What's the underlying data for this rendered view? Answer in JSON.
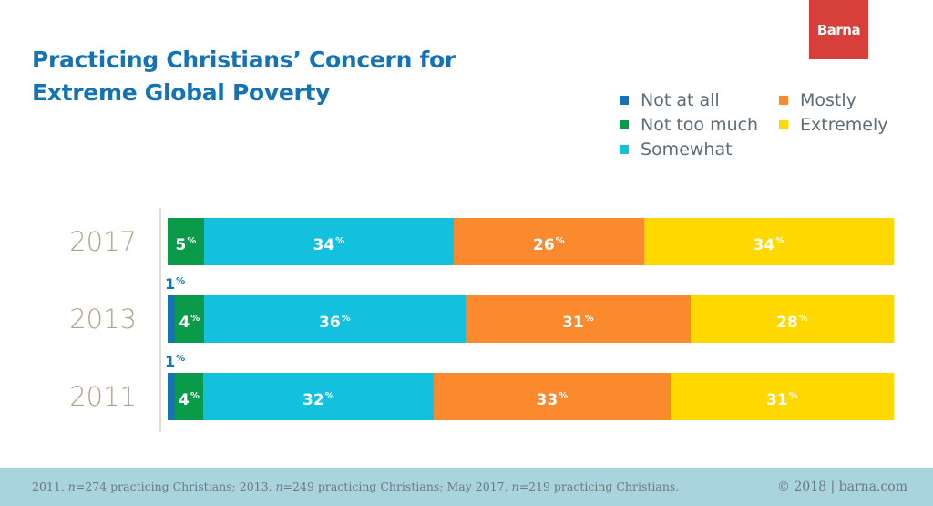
{
  "brand": {
    "logo_text": "Barna",
    "logo_color": "#d7403a"
  },
  "chart_data": {
    "type": "bar",
    "orientation": "horizontal",
    "stacked": true,
    "title": "Practicing Christians’ Concern for Extreme Global Poverty",
    "title_lines": [
      "Practicing Christians’ Concern for",
      "Extreme Global Poverty"
    ],
    "categories": [
      "2017",
      "2013",
      "2011"
    ],
    "series": [
      {
        "name": "Not at all",
        "color": "#1473b5",
        "values": [
          0,
          1,
          1
        ]
      },
      {
        "name": "Not too much",
        "color": "#0a9b4a",
        "values": [
          5,
          4,
          4
        ]
      },
      {
        "name": "Somewhat",
        "color": "#13c1de",
        "values": [
          34,
          36,
          32
        ]
      },
      {
        "name": "Mostly",
        "color": "#fb8a2e",
        "values": [
          26,
          31,
          33
        ]
      },
      {
        "name": "Extremely",
        "color": "#ffd800",
        "values": [
          34,
          28,
          31
        ]
      }
    ],
    "value_suffix": "%",
    "legend_position": "top-right",
    "xlim": [
      0,
      100
    ],
    "grid": false
  },
  "footer": {
    "segments": [
      {
        "text": "2011, ",
        "italic": false
      },
      {
        "text": "n",
        "italic": true
      },
      {
        "text": "=274 practicing Christians; 2013, ",
        "italic": false
      },
      {
        "text": "n",
        "italic": true
      },
      {
        "text": "=249 practicing Christians; May 2017, ",
        "italic": false
      },
      {
        "text": "n",
        "italic": true
      },
      {
        "text": "=219 practicing Christians.",
        "italic": false
      }
    ],
    "copyright": "© 2018 | barna.com",
    "background_color": "#a9d3dd"
  }
}
